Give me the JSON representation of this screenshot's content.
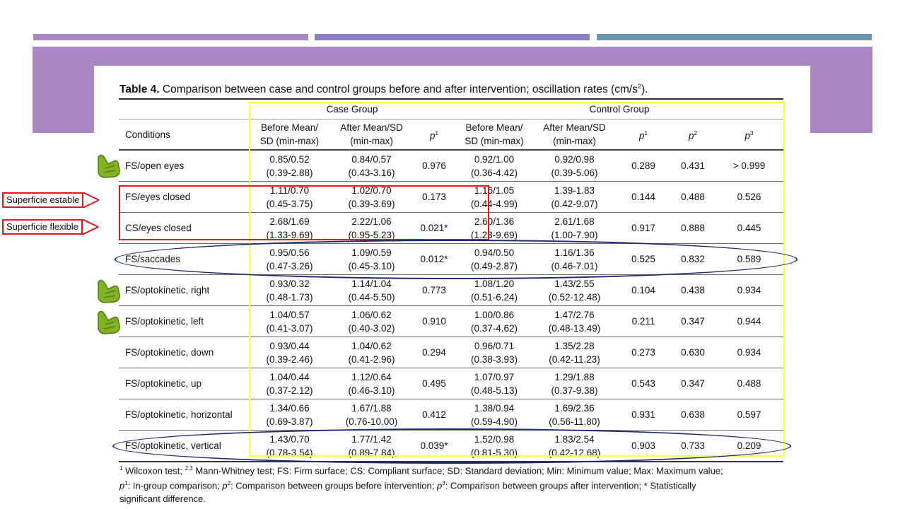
{
  "colors": {
    "bar1": "#ad86c4",
    "bar2": "#8a7fc7",
    "bar3": "#6a96a8",
    "banner": "#ad86c4",
    "highlight_yellow": "#ffff44",
    "highlight_red": "#e0191c",
    "ellipse_blue": "#1b2c6e",
    "hand_green": "#7fb321"
  },
  "callouts": [
    {
      "label": "Superficie estable"
    },
    {
      "label": "Superficie flexible"
    }
  ],
  "hand_icons": [
    "pointing-hand-icon",
    "pointing-hand-icon",
    "pointing-hand-icon"
  ],
  "table": {
    "title_main": "Table 4.",
    "title_rest": " Comparison between case and control groups before and after intervention; oscillation rates (cm/s",
    "title_sup": "2",
    "title_end": ").",
    "group_case": "Case Group",
    "group_control": "Control Group",
    "headers": {
      "conditions": "Conditions",
      "case_before_1": "Before Mean/",
      "case_before_2": "SD (min-max)",
      "case_after_1": "After Mean/SD",
      "case_after_2": "(min-max)",
      "p": "p",
      "p1": "1",
      "control_before_1": "Before Mean/",
      "control_before_2": "SD (min-max)",
      "control_after_1": "After Mean/SD",
      "control_after_2": "(min-max)",
      "p2": "2",
      "p3": "3"
    },
    "rows": [
      {
        "condition": "FS/open eyes",
        "cb_mean": "0.85/0.52",
        "cb_range": "(0.39-2.88)",
        "ca_mean": "0.84/0.57",
        "ca_range": "(0.43-3.16)",
        "p_case": "0.976",
        "tb_mean": "0.92/1.00",
        "tb_range": "(0.36-4.42)",
        "ta_mean": "0.92/0.98",
        "ta_range": "(0.39-5.06)",
        "p1": "0.289",
        "p2": "0.431",
        "p3": "> 0.999"
      },
      {
        "condition": "FS/eyes closed",
        "cb_mean": "1.11/0.70",
        "cb_range": "(0.45-3.75)",
        "ca_mean": "1.02/0.70",
        "ca_range": "(0.39-3.69)",
        "p_case": "0.173",
        "tb_mean": "1.16/1.05",
        "tb_range": "(0.44-4.99)",
        "ta_mean": "1.39-1.83",
        "ta_range": "(0.42-9.07)",
        "p1": "0.144",
        "p2": "0.488",
        "p3": "0.526"
      },
      {
        "condition": "CS/eyes closed",
        "cb_mean": "2.68/1.69",
        "cb_range": "(1.33-9.69)",
        "ca_mean": "2.22/1.06",
        "ca_range": "(0.95-5.23)",
        "p_case": "0.021*",
        "tb_mean": "2.60/1.36",
        "tb_range": "(1.23-9.69)",
        "ta_mean": "2.61/1.68",
        "ta_range": "(1.00-7.90)",
        "p1": "0.917",
        "p2": "0.888",
        "p3": "0.445"
      },
      {
        "condition": "FS/saccades",
        "cb_mean": "0.95/0.56",
        "cb_range": "(0.47-3.26)",
        "ca_mean": "1.09/0.59",
        "ca_range": "(0.45-3.10)",
        "p_case": "0.012*",
        "tb_mean": "0.94/0.50",
        "tb_range": "(0.49-2.87)",
        "ta_mean": "1.16/1.36",
        "ta_range": "(0.46-7.01)",
        "p1": "0.525",
        "p2": "0.832",
        "p3": "0.589"
      },
      {
        "condition": "FS/optokinetic, right",
        "cb_mean": "0.93/0.32",
        "cb_range": "(0.48-1.73)",
        "ca_mean": "1.14/1.04",
        "ca_range": "(0.44-5.50)",
        "p_case": "0.773",
        "tb_mean": "1.08/1.20",
        "tb_range": "(0.51-6.24)",
        "ta_mean": "1.43/2.55",
        "ta_range": "(0.52-12.48)",
        "p1": "0.104",
        "p2": "0.438",
        "p3": "0.934"
      },
      {
        "condition": "FS/optokinetic, left",
        "cb_mean": "1.04/0.57",
        "cb_range": "(0.41-3.07)",
        "ca_mean": "1.06/0.62",
        "ca_range": "(0.40-3.02)",
        "p_case": "0.910",
        "tb_mean": "1.00/0.86",
        "tb_range": "(0.37-4.62)",
        "ta_mean": "1.47/2.76",
        "ta_range": "(0.48-13.49)",
        "p1": "0.211",
        "p2": "0.347",
        "p3": "0.944"
      },
      {
        "condition": "FS/optokinetic, down",
        "cb_mean": "0.93/0.44",
        "cb_range": "(0.39-2.46)",
        "ca_mean": "1.04/0.62",
        "ca_range": "(0.41-2.96)",
        "p_case": "0.294",
        "tb_mean": "0.96/0.71",
        "tb_range": "(0.38-3.93)",
        "ta_mean": "1.35/2.28",
        "ta_range": "(0.42-11.23)",
        "p1": "0.273",
        "p2": "0.630",
        "p3": "0.934"
      },
      {
        "condition": "FS/optokinetic, up",
        "cb_mean": "1.04/0.44",
        "cb_range": "(0.37-2.12)",
        "ca_mean": "1.12/0.64",
        "ca_range": "(0.46-3.10)",
        "p_case": "0.495",
        "tb_mean": "1.07/0.97",
        "tb_range": "(0.48-5.13)",
        "ta_mean": "1.29/1.88",
        "ta_range": "(0.37-9.38)",
        "p1": "0.543",
        "p2": "0.347",
        "p3": "0.488"
      },
      {
        "condition": "FS/optokinetic, horizontal",
        "cb_mean": "1.34/0.66",
        "cb_range": "(0.69-3.87)",
        "ca_mean": "1.67/1.88",
        "ca_range": "(0.76-10.00)",
        "p_case": "0.412",
        "tb_mean": "1.38/0.94",
        "tb_range": "(0.59-4.90)",
        "ta_mean": "1.69/2.36",
        "ta_range": "(0.56-11.80)",
        "p1": "0.931",
        "p2": "0.638",
        "p3": "0.597"
      },
      {
        "condition": "FS/optokinetic, vertical",
        "cb_mean": "1.43/0.70",
        "cb_range": "(0.78-3.54)",
        "ca_mean": "1.77/1.42",
        "ca_range": "(0.89-7.84)",
        "p_case": "0.039*",
        "tb_mean": "1.52/0.98",
        "tb_range": "(0.81-5.30)",
        "ta_mean": "1.83/2.54",
        "ta_range": "(0.42-12.68)",
        "p1": "0.903",
        "p2": "0.733",
        "p3": "0.209"
      }
    ],
    "footnote": {
      "s1": "1",
      "t1": " Wilcoxon test; ",
      "s23": "2,3",
      "t2": " Mann-Whitney test; FS: Firm surface; CS: Compliant surface; SD: Standard deviation; Min: Minimum value; Max: Maximum value;",
      "p": "p",
      "sp1": "1",
      "t3": ": In-group comparison; ",
      "sp2": "2",
      "t4": ": Comparison between groups before intervention; ",
      "sp3": "3",
      "t5": ": Comparison between groups after intervention; * Statistically",
      "t6": "significant difference."
    }
  }
}
